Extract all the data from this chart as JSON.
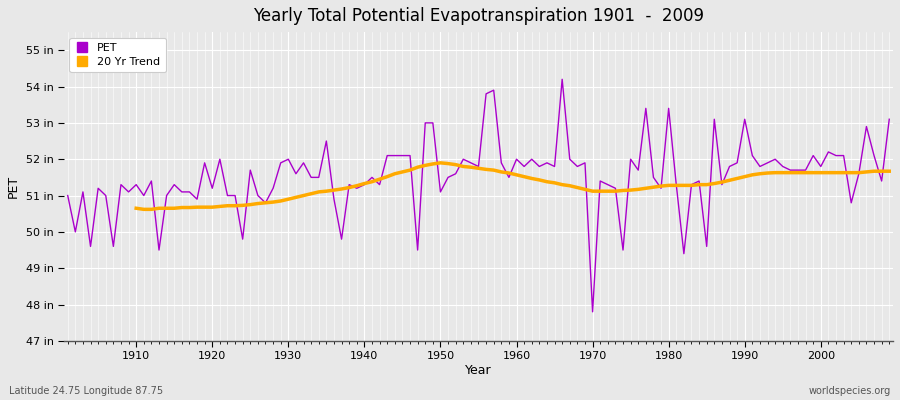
{
  "title": "Yearly Total Potential Evapotranspiration 1901  -  2009",
  "xlabel": "Year",
  "ylabel": "PET",
  "subtitle_left": "Latitude 24.75 Longitude 87.75",
  "subtitle_right": "worldspecies.org",
  "pet_color": "#aa00cc",
  "trend_color": "#ffaa00",
  "bg_color": "#e8e8e8",
  "plot_bg_color": "#e8e8e8",
  "grid_color": "#ffffff",
  "ylim": [
    47.0,
    55.5
  ],
  "xlim": [
    1900.5,
    2009.5
  ],
  "yticks": [
    47,
    48,
    49,
    50,
    51,
    52,
    53,
    54,
    55
  ],
  "xticks": [
    1910,
    1920,
    1930,
    1940,
    1950,
    1960,
    1970,
    1980,
    1990,
    2000
  ],
  "years": [
    1901,
    1902,
    1903,
    1904,
    1905,
    1906,
    1907,
    1908,
    1909,
    1910,
    1911,
    1912,
    1913,
    1914,
    1915,
    1916,
    1917,
    1918,
    1919,
    1920,
    1921,
    1922,
    1923,
    1924,
    1925,
    1926,
    1927,
    1928,
    1929,
    1930,
    1931,
    1932,
    1933,
    1934,
    1935,
    1936,
    1937,
    1938,
    1939,
    1940,
    1941,
    1942,
    1943,
    1944,
    1945,
    1946,
    1947,
    1948,
    1949,
    1950,
    1951,
    1952,
    1953,
    1954,
    1955,
    1956,
    1957,
    1958,
    1959,
    1960,
    1961,
    1962,
    1963,
    1964,
    1965,
    1966,
    1967,
    1968,
    1969,
    1970,
    1971,
    1972,
    1973,
    1974,
    1975,
    1976,
    1977,
    1978,
    1979,
    1980,
    1981,
    1982,
    1983,
    1984,
    1985,
    1986,
    1987,
    1988,
    1989,
    1990,
    1991,
    1992,
    1993,
    1994,
    1995,
    1996,
    1997,
    1998,
    1999,
    2000,
    2001,
    2002,
    2003,
    2004,
    2005,
    2006,
    2007,
    2008,
    2009
  ],
  "pet_values": [
    51.0,
    50.0,
    51.1,
    49.6,
    51.2,
    51.0,
    49.6,
    51.3,
    51.1,
    51.3,
    51.0,
    51.4,
    49.5,
    51.0,
    51.3,
    51.1,
    51.1,
    50.9,
    51.9,
    51.2,
    52.0,
    51.0,
    51.0,
    49.8,
    51.7,
    51.0,
    50.8,
    51.2,
    51.9,
    52.0,
    51.6,
    51.9,
    51.5,
    51.5,
    52.5,
    50.9,
    49.8,
    51.3,
    51.2,
    51.3,
    51.5,
    51.3,
    52.1,
    52.1,
    52.1,
    52.1,
    49.5,
    53.0,
    53.0,
    51.1,
    51.5,
    51.6,
    52.0,
    51.9,
    51.8,
    53.8,
    53.9,
    51.9,
    51.5,
    52.0,
    51.8,
    52.0,
    51.8,
    51.9,
    51.8,
    54.2,
    52.0,
    51.8,
    51.9,
    47.8,
    51.4,
    51.3,
    51.2,
    49.5,
    52.0,
    51.7,
    53.4,
    51.5,
    51.2,
    53.4,
    51.3,
    49.4,
    51.3,
    51.4,
    49.6,
    53.1,
    51.3,
    51.8,
    51.9,
    53.1,
    52.1,
    51.8,
    51.9,
    52.0,
    51.8,
    51.7,
    51.7,
    51.7,
    52.1,
    51.8,
    52.2,
    52.1,
    52.1,
    50.8,
    51.6,
    52.9,
    52.1,
    51.4,
    53.1
  ],
  "trend_values": [
    null,
    null,
    null,
    null,
    null,
    null,
    null,
    null,
    null,
    50.65,
    50.62,
    50.62,
    50.65,
    50.65,
    50.65,
    50.67,
    50.67,
    50.68,
    50.68,
    50.68,
    50.7,
    50.72,
    50.72,
    50.73,
    50.75,
    50.78,
    50.8,
    50.82,
    50.85,
    50.9,
    50.95,
    51.0,
    51.05,
    51.1,
    51.12,
    51.15,
    51.18,
    51.22,
    51.27,
    51.33,
    51.38,
    51.45,
    51.52,
    51.6,
    51.65,
    51.7,
    51.78,
    51.83,
    51.87,
    51.9,
    51.88,
    51.85,
    51.8,
    51.78,
    51.75,
    51.72,
    51.7,
    51.65,
    51.62,
    51.57,
    51.52,
    51.47,
    51.43,
    51.38,
    51.35,
    51.3,
    51.27,
    51.22,
    51.17,
    51.12,
    51.12,
    51.12,
    51.12,
    51.14,
    51.15,
    51.17,
    51.2,
    51.23,
    51.26,
    51.28,
    51.28,
    51.28,
    51.28,
    51.3,
    51.3,
    51.33,
    51.37,
    51.42,
    51.47,
    51.52,
    51.57,
    51.6,
    51.62,
    51.63,
    51.63,
    51.63,
    51.63,
    51.63,
    51.63,
    51.63,
    51.63,
    51.63,
    51.63,
    51.63,
    51.63,
    51.65,
    51.67,
    51.67,
    51.67
  ]
}
